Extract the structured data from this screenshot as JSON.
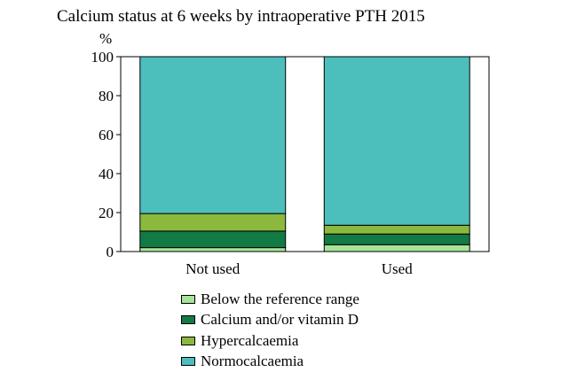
{
  "chart_data": {
    "type": "bar",
    "stacked": true,
    "title": "Calcium status at 6 weeks by intraoperative PTH 2015",
    "ylabel": "%",
    "xlabel": "",
    "ylim": [
      0,
      100
    ],
    "yticks": [
      "0",
      "20",
      "40",
      "60",
      "80",
      "100"
    ],
    "categories": [
      "Not used",
      "Used"
    ],
    "series": [
      {
        "name": "Below the reference range",
        "color": "#a6e39a",
        "values": [
          2,
          3.5
        ]
      },
      {
        "name": "Calcium and/or vitamin D",
        "color": "#127a44",
        "values": [
          8.5,
          5.5
        ]
      },
      {
        "name": "Hypercalcaemia",
        "color": "#8db83e",
        "values": [
          9,
          4.5
        ]
      },
      {
        "name": "Normocalcaemia",
        "color": "#4cbfbd",
        "values": [
          80.5,
          86.5
        ]
      }
    ],
    "legend_position": "bottom",
    "grid": false
  }
}
